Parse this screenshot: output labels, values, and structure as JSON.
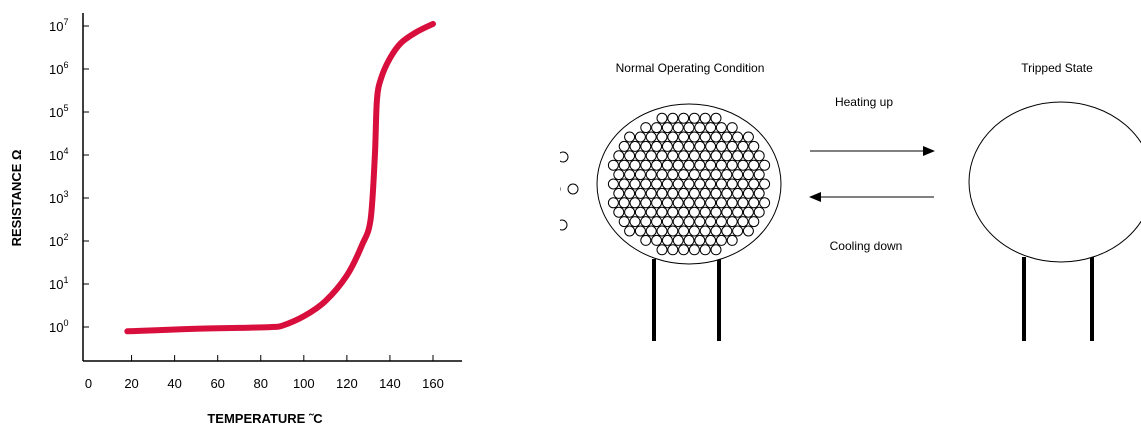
{
  "chart_data": {
    "type": "line",
    "xlabel": "TEMPERATURE ˜C",
    "ylabel": "RESISTANCE  Ω",
    "x_ticks": [
      0,
      20,
      40,
      60,
      80,
      100,
      120,
      140,
      160
    ],
    "y_ticks": [
      {
        "base": "10",
        "exp": "0"
      },
      {
        "base": "10",
        "exp": "1"
      },
      {
        "base": "10",
        "exp": "2"
      },
      {
        "base": "10",
        "exp": "3"
      },
      {
        "base": "10",
        "exp": "4"
      },
      {
        "base": "10",
        "exp": "5"
      },
      {
        "base": "10",
        "exp": "6"
      },
      {
        "base": "10",
        "exp": "7"
      }
    ],
    "y_scale": "log",
    "xlim": [
      0,
      170
    ],
    "ylim_log10": [
      -0.3,
      7.3
    ],
    "grid": false,
    "colors": {
      "series": "#d80f3c"
    },
    "series": [
      {
        "x": [
          18,
          30,
          50,
          70,
          85,
          90,
          100,
          110,
          120,
          127,
          131,
          133,
          134,
          136,
          140,
          145,
          152,
          160
        ],
        "log10": [
          -0.1,
          -0.08,
          -0.04,
          -0.02,
          0.0,
          0.03,
          0.25,
          0.6,
          1.2,
          1.9,
          2.5,
          4.0,
          5.3,
          5.8,
          6.25,
          6.6,
          6.85,
          7.05
        ]
      }
    ]
  },
  "diagram": {
    "left_title": "Normal Operating Condition",
    "right_title": "Tripped State",
    "arrow_top_label": "Heating up",
    "arrow_bottom_label": "Cooling down"
  }
}
